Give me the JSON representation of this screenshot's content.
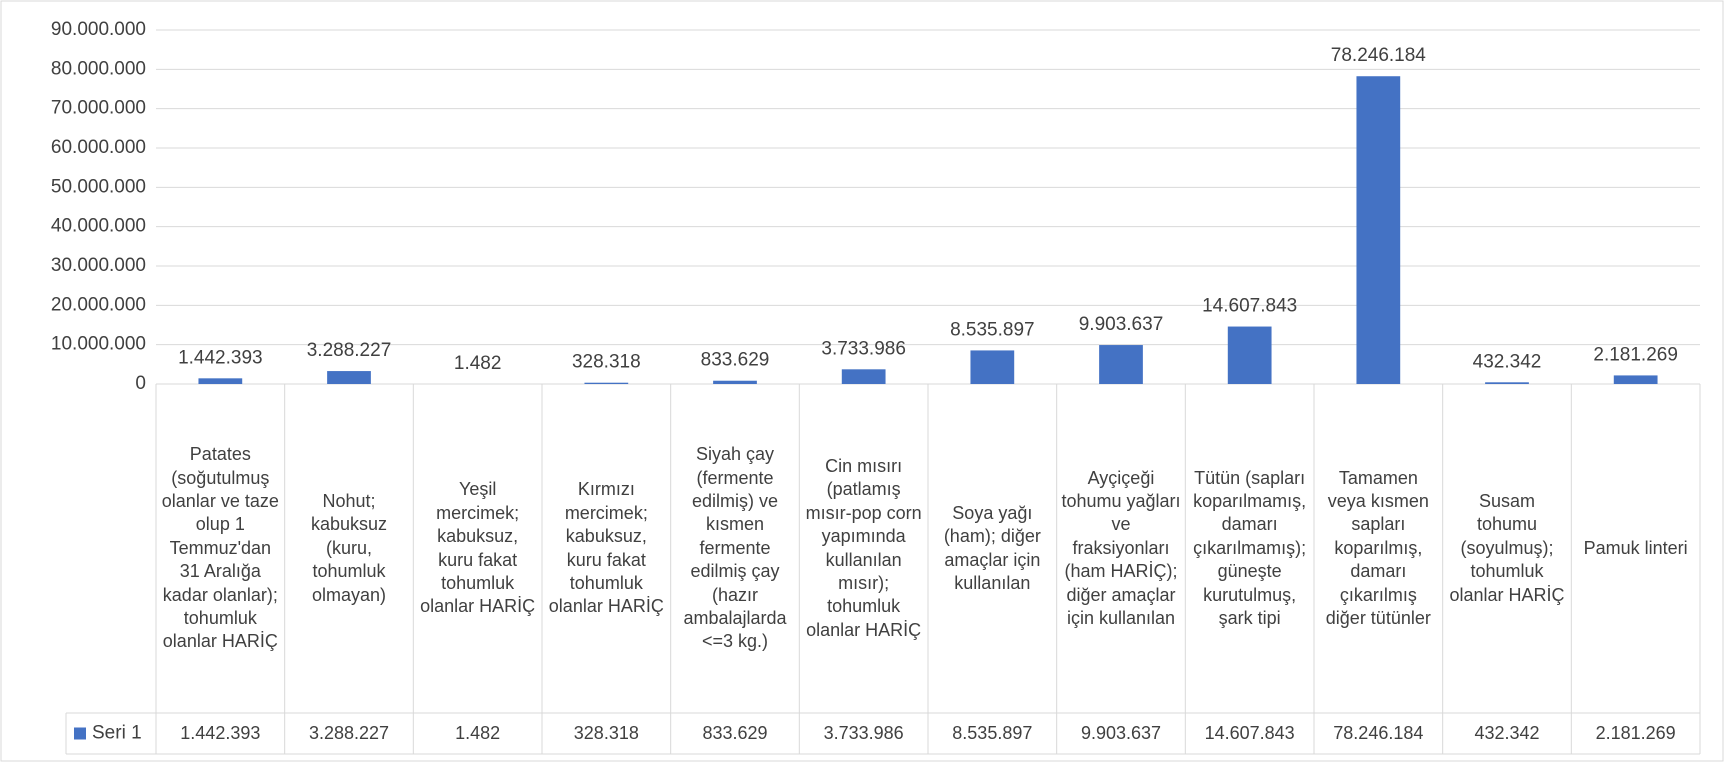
{
  "chart_data": {
    "type": "bar",
    "categories": [
      "Patates (soğutulmuş olanlar ve taze olup 1 Temmuz'dan 31 Aralığa kadar olanlar); tohumluk olanlar HARİÇ",
      "Nohut; kabuksuz (kuru, tohumluk olmayan)",
      "Yeşil mercimek; kabuksuz, kuru fakat tohumluk olanlar HARİÇ",
      "Kırmızı mercimek; kabuksuz, kuru fakat tohumluk olanlar HARİÇ",
      "Siyah çay (fermente edilmiş) ve kısmen fermente edilmiş çay (hazır ambalajlarda <=3 kg.)",
      "Cin mısırı (patlamış mısır-pop corn yapımında kullanılan mısır); tohumluk olanlar HARİÇ",
      "Soya yağı (ham); diğer amaçlar için kullanılan",
      "Ayçiçeği tohumu yağları ve fraksiyonları (ham HARİÇ); diğer amaçlar için kullanılan",
      "Tütün (sapları koparılmamış, damarı çıkarılmamış); güneşte kurutulmuş, şark tipi",
      "Tamamen veya kısmen sapları koparılmış, damarı çıkarılmış diğer tütünler",
      "Susam tohumu (soyulmuş); tohumluk olanlar HARİÇ",
      "Pamuk linteri"
    ],
    "series": [
      {
        "name": "Seri 1",
        "color": "#4472c4",
        "values": [
          1442393,
          3288227,
          1482,
          328318,
          833629,
          3733986,
          8535897,
          9903637,
          14607843,
          78246184,
          432342,
          2181269
        ],
        "value_labels": [
          "1.442.393",
          "3.288.227",
          "1.482",
          "328.318",
          "833.629",
          "3.733.986",
          "8.535.897",
          "9.903.637",
          "14.607.843",
          "78.246.184",
          "432.342",
          "2.181.269"
        ]
      }
    ],
    "ylim": [
      0,
      90000000
    ],
    "yticks": [
      0,
      {
        "value": 10000000,
        "label": "10.000.000"
      },
      {
        "value": 20000000,
        "label": "20.000.000"
      },
      {
        "value": 30000000,
        "label": "30.000.000"
      },
      {
        "value": 40000000,
        "label": "40.000.000"
      },
      {
        "value": 50000000,
        "label": "50.000.000"
      },
      {
        "value": 60000000,
        "label": "60.000.000"
      },
      {
        "value": 70000000,
        "label": "70.000.000"
      },
      {
        "value": 80000000,
        "label": "80.000.000"
      },
      {
        "value": 90000000,
        "label": "90.000.000"
      }
    ],
    "grid": true,
    "data_table": true
  }
}
